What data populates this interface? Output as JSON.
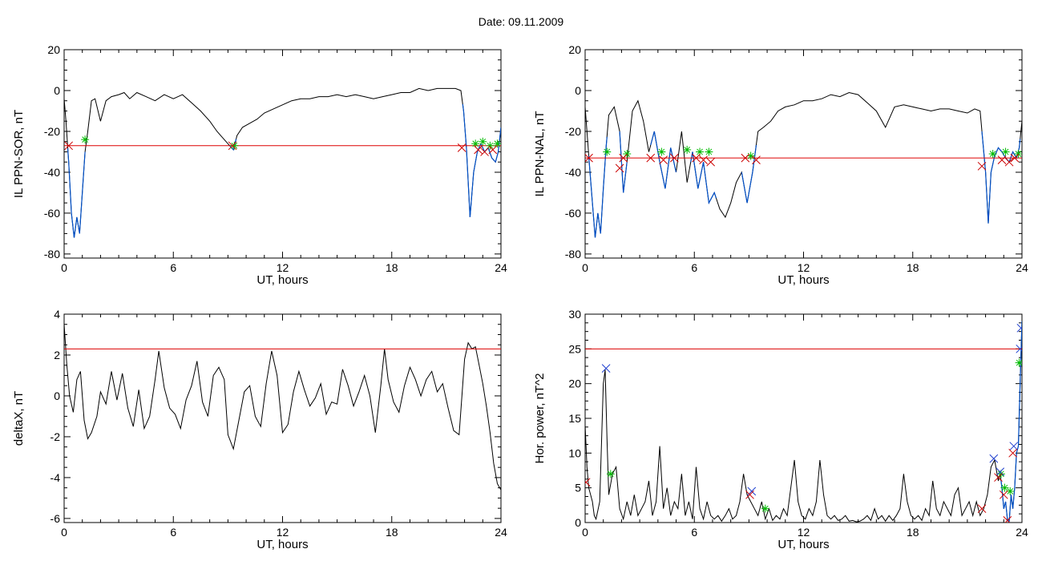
{
  "figure": {
    "title": "Date:  09.11.2009"
  },
  "colors": {
    "trace": "#000000",
    "threshold": "#dd0000",
    "event": "#0050c8",
    "marker_green": "#00bb00",
    "marker_red": "#cc0000",
    "marker_blue": "#1f3fcf"
  },
  "chart_data": [
    {
      "type": "line",
      "ylabel": "IL PPN-SOR, nT",
      "xlabel": "UT, hours",
      "xlim": [
        0,
        24
      ],
      "xticks": [
        0,
        6,
        12,
        18,
        24
      ],
      "ylim": [
        -82,
        20
      ],
      "yticks": [
        -80,
        -60,
        -40,
        -20,
        0,
        20
      ],
      "threshold": -27,
      "series": [
        {
          "color": "#000000",
          "x": [
            0,
            0.1,
            0.25,
            0.4,
            0.55,
            0.7,
            0.85,
            1.0,
            1.15,
            1.3,
            1.5,
            1.7,
            2.0,
            2.3,
            2.6,
            3.0,
            3.3,
            3.6,
            4.0,
            4.5,
            5.0,
            5.5,
            6.0,
            6.5,
            7.0,
            7.5,
            8.0,
            8.4,
            8.8,
            9.1,
            9.3,
            9.5,
            9.8,
            10.2,
            10.6,
            11.0,
            11.5,
            12.0,
            12.5,
            13.0,
            13.5,
            14.0,
            14.5,
            15.0,
            15.5,
            16.0,
            16.5,
            17.0,
            17.5,
            18.0,
            18.5,
            19.0,
            19.5,
            20.0,
            20.5,
            21.0,
            21.5,
            21.8,
            21.95,
            22.1,
            22.3,
            22.5,
            22.7,
            22.9,
            23.1,
            23.3,
            23.5,
            23.7,
            23.85,
            24.0
          ],
          "y": [
            -4,
            -15,
            -35,
            -60,
            -72,
            -62,
            -70,
            -50,
            -30,
            -20,
            -5,
            -4,
            -15,
            -5,
            -3,
            -2,
            -1,
            -4,
            -1,
            -3,
            -5,
            -2,
            -4,
            -2,
            -6,
            -10,
            -15,
            -20,
            -24,
            -27,
            -29,
            -22,
            -18,
            -16,
            -14,
            -11,
            -9,
            -7,
            -5,
            -4,
            -4,
            -3,
            -3,
            -2,
            -3,
            -2,
            -3,
            -4,
            -3,
            -2,
            -1,
            -1,
            1,
            0,
            1,
            1,
            1,
            0,
            -10,
            -28,
            -62,
            -40,
            -30,
            -26,
            -30,
            -28,
            -33,
            -35,
            -30,
            -18
          ]
        }
      ],
      "event_segments": [
        [
          0.2,
          1.15
        ],
        [
          9.1,
          9.45
        ],
        [
          21.9,
          24.0
        ]
      ],
      "markers": {
        "red_x": [
          [
            0.25,
            -27
          ],
          [
            9.25,
            -27
          ],
          [
            21.85,
            -28
          ],
          [
            22.75,
            -29
          ],
          [
            23.1,
            -30
          ],
          [
            23.55,
            -29
          ]
        ],
        "green_star": [
          [
            1.15,
            -24
          ],
          [
            9.35,
            -27
          ],
          [
            22.6,
            -26
          ],
          [
            23.0,
            -25
          ],
          [
            23.4,
            -27
          ],
          [
            23.8,
            -26
          ]
        ]
      }
    },
    {
      "type": "line",
      "ylabel": "IL PPN-NAL, nT",
      "xlabel": "UT, hours",
      "xlim": [
        0,
        24
      ],
      "xticks": [
        0,
        6,
        12,
        18,
        24
      ],
      "ylim": [
        -82,
        20
      ],
      "yticks": [
        -80,
        -60,
        -40,
        -20,
        0,
        20
      ],
      "threshold": -33,
      "series": [
        {
          "color": "#000000",
          "x": [
            0,
            0.1,
            0.25,
            0.4,
            0.55,
            0.7,
            0.85,
            1.0,
            1.15,
            1.3,
            1.6,
            1.9,
            2.1,
            2.3,
            2.6,
            2.9,
            3.2,
            3.5,
            3.8,
            4.1,
            4.4,
            4.7,
            5.0,
            5.3,
            5.6,
            5.9,
            6.2,
            6.5,
            6.8,
            7.1,
            7.4,
            7.7,
            8.0,
            8.3,
            8.6,
            8.9,
            9.2,
            9.5,
            9.8,
            10.2,
            10.6,
            11.0,
            11.5,
            12.0,
            12.5,
            13.0,
            13.5,
            14.0,
            14.5,
            15.0,
            15.5,
            16.0,
            16.5,
            17.0,
            17.5,
            18.0,
            18.5,
            19.0,
            19.5,
            20.0,
            20.5,
            21.0,
            21.4,
            21.7,
            21.85,
            22.0,
            22.15,
            22.3,
            22.5,
            22.7,
            22.9,
            23.1,
            23.3,
            23.5,
            23.7,
            23.85,
            24.0
          ],
          "y": [
            -8,
            -20,
            -38,
            -55,
            -72,
            -60,
            -70,
            -48,
            -28,
            -12,
            -8,
            -20,
            -50,
            -35,
            -10,
            -5,
            -15,
            -30,
            -20,
            -35,
            -48,
            -28,
            -40,
            -20,
            -45,
            -30,
            -48,
            -35,
            -55,
            -50,
            -58,
            -62,
            -55,
            -45,
            -40,
            -55,
            -40,
            -20,
            -18,
            -15,
            -10,
            -8,
            -7,
            -5,
            -5,
            -4,
            -2,
            -3,
            -1,
            -2,
            -6,
            -10,
            -18,
            -8,
            -7,
            -8,
            -9,
            -10,
            -9,
            -9,
            -10,
            -11,
            -9,
            -10,
            -25,
            -40,
            -65,
            -40,
            -32,
            -28,
            -30,
            -33,
            -35,
            -30,
            -33,
            -28,
            -15
          ]
        }
      ],
      "event_segments": [
        [
          0.2,
          1.2
        ],
        [
          1.9,
          2.3
        ],
        [
          3.6,
          5.0
        ],
        [
          5.8,
          7.2
        ],
        [
          8.6,
          9.4
        ],
        [
          21.8,
          23.9
        ]
      ],
      "markers": {
        "red_x": [
          [
            0.2,
            -33
          ],
          [
            1.9,
            -38
          ],
          [
            2.1,
            -33
          ],
          [
            3.6,
            -33
          ],
          [
            4.3,
            -34
          ],
          [
            4.9,
            -33
          ],
          [
            6.1,
            -33
          ],
          [
            6.5,
            -34
          ],
          [
            6.9,
            -35
          ],
          [
            8.8,
            -33
          ],
          [
            9.4,
            -34
          ],
          [
            21.8,
            -37
          ],
          [
            22.9,
            -34
          ],
          [
            23.3,
            -35
          ],
          [
            23.6,
            -33
          ]
        ],
        "green_star": [
          [
            1.2,
            -30
          ],
          [
            2.3,
            -31
          ],
          [
            4.2,
            -30
          ],
          [
            5.6,
            -29
          ],
          [
            6.3,
            -30
          ],
          [
            6.8,
            -30
          ],
          [
            9.1,
            -32
          ],
          [
            22.4,
            -31
          ],
          [
            23.1,
            -30
          ],
          [
            23.8,
            -31
          ]
        ]
      }
    },
    {
      "type": "line",
      "ylabel": "deltaX, nT",
      "xlabel": "UT, hours",
      "xlim": [
        0,
        24
      ],
      "xticks": [
        0,
        6,
        12,
        18,
        24
      ],
      "ylim": [
        -6.2,
        4
      ],
      "yticks": [
        -6,
        -4,
        -2,
        0,
        2,
        4
      ],
      "threshold": 2.3,
      "series": [
        {
          "color": "#000000",
          "x": [
            0,
            0.15,
            0.3,
            0.5,
            0.7,
            0.9,
            1.1,
            1.3,
            1.5,
            1.8,
            2.0,
            2.3,
            2.6,
            2.9,
            3.2,
            3.5,
            3.8,
            4.1,
            4.4,
            4.7,
            5.0,
            5.2,
            5.5,
            5.8,
            6.1,
            6.4,
            6.7,
            7.0,
            7.3,
            7.6,
            7.9,
            8.2,
            8.5,
            8.8,
            9.0,
            9.3,
            9.6,
            9.9,
            10.2,
            10.5,
            10.8,
            11.1,
            11.4,
            11.7,
            12.0,
            12.3,
            12.6,
            12.9,
            13.2,
            13.5,
            13.8,
            14.1,
            14.4,
            14.7,
            15.0,
            15.3,
            15.6,
            15.9,
            16.2,
            16.5,
            16.8,
            17.1,
            17.4,
            17.6,
            17.8,
            18.1,
            18.4,
            18.7,
            19.0,
            19.3,
            19.6,
            19.9,
            20.2,
            20.5,
            20.8,
            21.1,
            21.4,
            21.7,
            22.0,
            22.2,
            22.4,
            22.6,
            22.8,
            23.0,
            23.2,
            23.4,
            23.6,
            23.8,
            24.0
          ],
          "y": [
            3.5,
            1.5,
            0,
            -0.8,
            0.8,
            1.2,
            -1.2,
            -2.1,
            -1.8,
            -1.0,
            0.2,
            -0.4,
            1.2,
            -0.2,
            1.1,
            -0.6,
            -1.5,
            0.3,
            -1.6,
            -1.0,
            0.8,
            2.2,
            0.4,
            -0.6,
            -0.9,
            -1.6,
            -0.2,
            0.5,
            1.7,
            -0.3,
            -1.0,
            1.0,
            1.4,
            0.8,
            -1.9,
            -2.6,
            -1.2,
            0.2,
            0.5,
            -1.0,
            -1.5,
            0.6,
            2.2,
            1.0,
            -1.8,
            -1.4,
            0.2,
            1.2,
            0.3,
            -0.5,
            -0.1,
            0.6,
            -0.9,
            -0.3,
            -0.4,
            1.3,
            0.5,
            -0.5,
            0.2,
            1.0,
            0.0,
            -1.8,
            0.5,
            2.3,
            0.8,
            -0.3,
            -0.8,
            0.5,
            1.4,
            0.8,
            0.0,
            0.8,
            1.2,
            0.2,
            0.6,
            -0.6,
            -1.7,
            -1.9,
            1.8,
            2.6,
            2.3,
            2.4,
            1.5,
            0.6,
            -0.5,
            -1.8,
            -3.3,
            -4.3,
            -4.6
          ]
        }
      ],
      "event_segments": [],
      "markers": {
        "red_x": [],
        "green_star": []
      }
    },
    {
      "type": "line",
      "ylabel": "Hor. power, nT^2",
      "xlabel": "UT, hours",
      "xlim": [
        0,
        24
      ],
      "xticks": [
        0,
        6,
        12,
        18,
        24
      ],
      "ylim": [
        0,
        30
      ],
      "yticks": [
        0,
        5,
        10,
        15,
        20,
        25,
        30
      ],
      "threshold": 25,
      "series": [
        {
          "color": "#000000",
          "x": [
            0,
            0.1,
            0.2,
            0.3,
            0.4,
            0.5,
            0.6,
            0.8,
            1.0,
            1.1,
            1.2,
            1.3,
            1.5,
            1.7,
            1.9,
            2.1,
            2.3,
            2.5,
            2.7,
            2.9,
            3.1,
            3.3,
            3.5,
            3.7,
            3.9,
            4.1,
            4.3,
            4.5,
            4.7,
            4.9,
            5.1,
            5.3,
            5.5,
            5.7,
            5.9,
            6.1,
            6.3,
            6.5,
            6.7,
            6.9,
            7.1,
            7.3,
            7.5,
            7.7,
            7.9,
            8.1,
            8.3,
            8.5,
            8.7,
            8.9,
            9.1,
            9.3,
            9.5,
            9.7,
            9.9,
            10.1,
            10.3,
            10.5,
            10.7,
            10.9,
            11.1,
            11.3,
            11.5,
            11.7,
            11.9,
            12.1,
            12.3,
            12.5,
            12.7,
            12.9,
            13.1,
            13.3,
            13.5,
            13.7,
            13.9,
            14.1,
            14.3,
            14.5,
            14.7,
            14.9,
            15.1,
            15.3,
            15.5,
            15.7,
            15.9,
            16.1,
            16.3,
            16.5,
            16.7,
            16.9,
            17.1,
            17.3,
            17.5,
            17.7,
            17.9,
            18.1,
            18.3,
            18.5,
            18.7,
            18.9,
            19.1,
            19.3,
            19.5,
            19.7,
            19.9,
            20.1,
            20.3,
            20.5,
            20.7,
            20.9,
            21.1,
            21.3,
            21.5,
            21.7,
            21.9,
            22.1,
            22.3,
            22.5,
            22.7,
            22.8,
            22.9,
            23.0,
            23.1,
            23.2,
            23.3,
            23.4,
            23.5,
            23.6,
            23.7,
            23.8,
            23.9,
            24.0
          ],
          "y": [
            14,
            8,
            5,
            4,
            3,
            1,
            0.5,
            3,
            20,
            22,
            12,
            4,
            7,
            8,
            2,
            0.5,
            3,
            1,
            4,
            1,
            2,
            3,
            6,
            1,
            3,
            11,
            2,
            5,
            1,
            3,
            2,
            7,
            1,
            3,
            0.5,
            8,
            2,
            0.5,
            3,
            1,
            0.5,
            1,
            0.2,
            1,
            2,
            0.5,
            1,
            3,
            7,
            4,
            3,
            2,
            1,
            3,
            0.5,
            2,
            0.3,
            1,
            0.5,
            2,
            1,
            5,
            9,
            3,
            1,
            0.5,
            2,
            1,
            3,
            9,
            4,
            1,
            0.5,
            1,
            0.3,
            0.5,
            1,
            0.2,
            0.3,
            0.1,
            0.2,
            0.5,
            1,
            0.3,
            2,
            0.5,
            1,
            0.2,
            1,
            0.3,
            1,
            2,
            7,
            3,
            1,
            0.5,
            1,
            0.3,
            2,
            1,
            6,
            2,
            1,
            3,
            2,
            1,
            4,
            5,
            1,
            2,
            3,
            1,
            3,
            1,
            2,
            4,
            8,
            9,
            6,
            7,
            5,
            2,
            3,
            0.5,
            0.2,
            4,
            2,
            5,
            10,
            11,
            20,
            29
          ]
        }
      ],
      "event_segments": [
        [
          22.85,
          24.0
        ]
      ],
      "markers": {
        "red_x": [
          [
            0.05,
            5.8
          ],
          [
            9.05,
            4
          ],
          [
            21.8,
            2
          ],
          [
            22.7,
            6.5
          ],
          [
            23.0,
            4
          ],
          [
            23.2,
            0.3
          ],
          [
            23.5,
            10
          ]
        ],
        "blue_x": [
          [
            1.15,
            22.2
          ],
          [
            9.15,
            4.5
          ],
          [
            22.45,
            9.2
          ],
          [
            22.8,
            7.3
          ],
          [
            23.55,
            11
          ],
          [
            23.9,
            25
          ],
          [
            23.95,
            28
          ]
        ],
        "green_star": [
          [
            1.4,
            7
          ],
          [
            9.9,
            2
          ],
          [
            22.85,
            7
          ],
          [
            23.05,
            5
          ],
          [
            23.35,
            4.5
          ],
          [
            23.85,
            23
          ]
        ]
      }
    }
  ]
}
